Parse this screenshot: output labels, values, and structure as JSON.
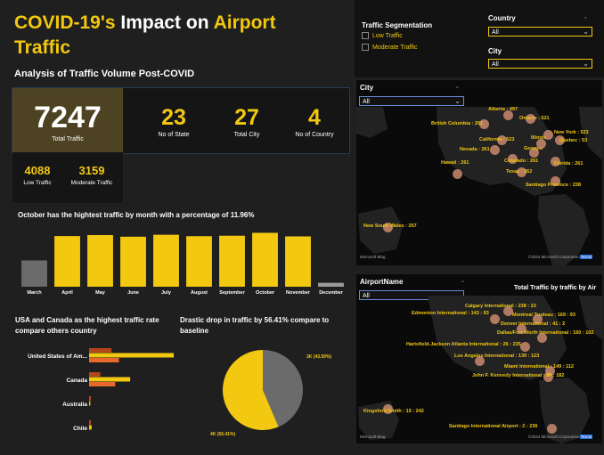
{
  "title": {
    "part1": "COVID-19's",
    "part2": " Impact on ",
    "part3": "Airport",
    "part4": "Traffic"
  },
  "subtitle": "Analysis of Traffic Volume Post-COVID",
  "kpis": {
    "total_traffic": {
      "value": "7247",
      "label": "Total Traffic"
    },
    "states": {
      "value": "23",
      "label": "No of State"
    },
    "cities": {
      "value": "27",
      "label": "Total City"
    },
    "countries": {
      "value": "4",
      "label": "No of Country"
    },
    "low": {
      "value": "4088",
      "label": "Low  Traffic"
    },
    "moderate": {
      "value": "3159",
      "label": "Moderate  Traffic"
    }
  },
  "month_chart": {
    "title": "October has the hightest traffic by month with a percentage of 11.96%",
    "chart_data": {
      "type": "bar",
      "categories": [
        "March",
        "April",
        "May",
        "June",
        "July",
        "August",
        "September",
        "October",
        "November",
        "December"
      ],
      "values": [
        405,
        780,
        795,
        770,
        800,
        778,
        785,
        830,
        775,
        60
      ],
      "colors": [
        "#6b6b6b",
        "#f2c811",
        "#f2c811",
        "#f2c811",
        "#f2c811",
        "#f2c811",
        "#f2c811",
        "#f2c811",
        "#f2c811",
        "#9a9a9a"
      ]
    }
  },
  "country_chart": {
    "title": "USA and Canada as the highest traffic rate compare others country",
    "chart_data": {
      "type": "bar",
      "categories": [
        "United States of Am...",
        "Canada",
        "Australia",
        "Chile"
      ],
      "series": [
        {
          "values": [
            18,
            9,
            1.5,
            1.5
          ],
          "color": "#b5451b"
        },
        {
          "values": [
            68,
            33,
            1,
            2
          ],
          "color": "#f2c811"
        },
        {
          "values": [
            24,
            21,
            0,
            0
          ],
          "color": "#e8692b"
        }
      ]
    }
  },
  "pie_chart": {
    "title": "Drastic drop in traffic by 56.41% compare to baseline",
    "chart_data": {
      "type": "pie",
      "slices": [
        {
          "label": "3K (43.59%)",
          "value": 43.59,
          "color": "#6b6b6b"
        },
        {
          "label": "4K (56.41%)",
          "value": 56.41,
          "color": "#f2c811"
        }
      ]
    }
  },
  "filters": {
    "segmentation_title": "Traffic Segmentation",
    "segments": [
      "Low Traffic",
      "Moderate Traffic"
    ],
    "country_label": "Country",
    "country_value": "All",
    "city_label": "City",
    "city_value": "All"
  },
  "city_map": {
    "filter_label": "City",
    "filter_value": "All",
    "credit": "©2024 Microsoft Corporation",
    "terms": "Terms",
    "bing": "Microsoft Bing",
    "points": [
      {
        "label": "Alberta : 497"
      },
      {
        "label": "Ontario : 521"
      },
      {
        "label": "British Columbia : 261"
      },
      {
        "label": "New York : 523"
      },
      {
        "label": "California : 523"
      },
      {
        "label": "Quebec : 53"
      },
      {
        "label": "Nevada : 261"
      },
      {
        "label": "Georgia"
      },
      {
        "label": "Colorado : 261"
      },
      {
        "label": "Illinois"
      },
      {
        "label": "Hawaii : 261"
      },
      {
        "label": "Texas : 262"
      },
      {
        "label": "Florida : 261"
      },
      {
        "label": "Santiago Province : 238"
      },
      {
        "label": "New South Wales : 257"
      }
    ]
  },
  "airport_map": {
    "filter_label": "AirportName",
    "filter_value": "All",
    "chart_title": "Total Traffic by traffic by Air",
    "credit": "©2024 Microsoft Corporation",
    "terms": "Terms",
    "bing": "Microsoft Bing",
    "points": [
      {
        "label": "Calgary International : 238 : 23"
      },
      {
        "label": "Edmonton International : 143 : 93"
      },
      {
        "label": "Montreal Trudeau : 169 : 93"
      },
      {
        "label": "Denver International : 41 : 2"
      },
      {
        "label": "Dallas/Fort Worth International : 160 : 102"
      },
      {
        "label": "Hartsfield-Jackson Atlanta International : 26 : 235"
      },
      {
        "label": "Los Angeles International : 139 : 123"
      },
      {
        "label": "Miami International : 149 : 112"
      },
      {
        "label": "John F. Kennedy International : 80 : 182"
      },
      {
        "label": "Kingsford Smith : 15 : 242"
      },
      {
        "label": "Santiago International Airport : 2 : 236"
      }
    ]
  }
}
